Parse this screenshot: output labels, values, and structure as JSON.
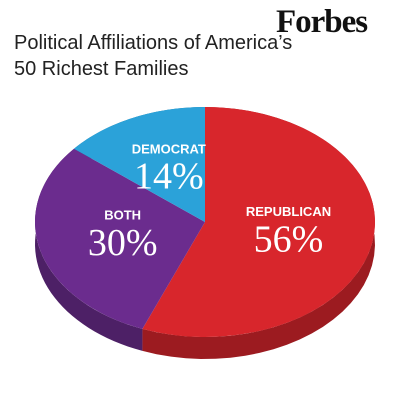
{
  "logo": "Forbes",
  "chart_data": {
    "type": "pie",
    "title": "Political Affiliations of America’s 50 Richest Families",
    "categories": [
      "REPUBLICAN",
      "BOTH",
      "DEMOCRAT"
    ],
    "values": [
      56,
      30,
      14
    ],
    "value_labels": [
      "56%",
      "30%",
      "14%"
    ],
    "colors": [
      "#d8262c",
      "#6b2c8e",
      "#2ba2d9"
    ]
  }
}
